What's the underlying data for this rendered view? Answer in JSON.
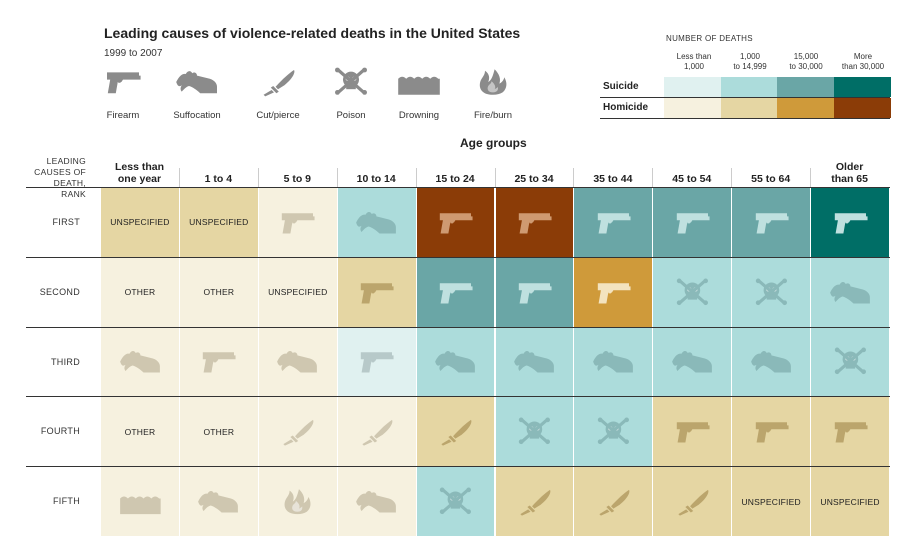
{
  "title": "Leading causes of violence-related deaths in the United States",
  "subtitle": "1999 to 2007",
  "icon_key": [
    {
      "icon": "firearm",
      "label": "Firearm"
    },
    {
      "icon": "suffocation",
      "label": "Suffocation"
    },
    {
      "icon": "cutpierce",
      "label": "Cut/pierce"
    },
    {
      "icon": "poison",
      "label": "Poison"
    },
    {
      "icon": "drowning",
      "label": "Drowning"
    },
    {
      "icon": "fire",
      "label": "Fire/burn"
    }
  ],
  "legend": {
    "title": "NUMBER OF DEATHS",
    "bins": [
      {
        "l1": "Less than",
        "l2": "1,000"
      },
      {
        "l1": "1,000",
        "l2": "to 14,999"
      },
      {
        "l1": "15,000",
        "l2": "to 30,000"
      },
      {
        "l1": "More",
        "l2": "than 30,000"
      }
    ],
    "rows": [
      {
        "label": "Suicide",
        "colors": [
          "#e0f1f0",
          "#acdcdb",
          "#6aa6a6",
          "#006e66"
        ]
      },
      {
        "label": "Homicide",
        "colors": [
          "#f6f1df",
          "#e5d6a3",
          "#cf9a3a",
          "#8b3c07"
        ]
      }
    ]
  },
  "chart_data": {
    "type": "table",
    "title": "Leading causes of violence-related deaths in the United States",
    "subtitle": "1999 to 2007",
    "column_group_label": "Age groups",
    "rank_header": [
      "LEADING",
      "CAUSES OF",
      "DEATH,",
      "RANK"
    ],
    "columns": [
      {
        "l1": "Less than",
        "l2": "one year"
      },
      {
        "l1": "",
        "l2": "1 to 4"
      },
      {
        "l1": "",
        "l2": "5 to 9"
      },
      {
        "l1": "",
        "l2": "10 to 14"
      },
      {
        "l1": "",
        "l2": "15 to 24"
      },
      {
        "l1": "",
        "l2": "25 to 34"
      },
      {
        "l1": "",
        "l2": "35 to 44"
      },
      {
        "l1": "",
        "l2": "45 to 54"
      },
      {
        "l1": "",
        "l2": "55 to 64"
      },
      {
        "l1": "Older",
        "l2": "than 65"
      }
    ],
    "rows": [
      {
        "rank": "FIRST",
        "cells": [
          {
            "type": "homicide",
            "bin": 1,
            "cause": "unspecified",
            "text": "UNSPECIFIED"
          },
          {
            "type": "homicide",
            "bin": 1,
            "cause": "unspecified",
            "text": "UNSPECIFIED"
          },
          {
            "type": "homicide",
            "bin": 0,
            "cause": "firearm"
          },
          {
            "type": "suicide",
            "bin": 1,
            "cause": "suffocation"
          },
          {
            "type": "homicide",
            "bin": 3,
            "cause": "firearm"
          },
          {
            "type": "homicide",
            "bin": 3,
            "cause": "firearm"
          },
          {
            "type": "suicide",
            "bin": 2,
            "cause": "firearm"
          },
          {
            "type": "suicide",
            "bin": 2,
            "cause": "firearm"
          },
          {
            "type": "suicide",
            "bin": 2,
            "cause": "firearm"
          },
          {
            "type": "suicide",
            "bin": 3,
            "cause": "firearm"
          }
        ]
      },
      {
        "rank": "SECOND",
        "cells": [
          {
            "type": "homicide",
            "bin": 0,
            "cause": "other",
            "text": "OTHER"
          },
          {
            "type": "homicide",
            "bin": 0,
            "cause": "other",
            "text": "OTHER"
          },
          {
            "type": "homicide",
            "bin": 0,
            "cause": "unspecified",
            "text": "UNSPECIFIED"
          },
          {
            "type": "homicide",
            "bin": 1,
            "cause": "firearm"
          },
          {
            "type": "suicide",
            "bin": 2,
            "cause": "firearm"
          },
          {
            "type": "suicide",
            "bin": 2,
            "cause": "firearm"
          },
          {
            "type": "homicide",
            "bin": 2,
            "cause": "firearm"
          },
          {
            "type": "suicide",
            "bin": 1,
            "cause": "poison"
          },
          {
            "type": "suicide",
            "bin": 1,
            "cause": "poison"
          },
          {
            "type": "suicide",
            "bin": 1,
            "cause": "suffocation"
          }
        ]
      },
      {
        "rank": "THIRD",
        "cells": [
          {
            "type": "homicide",
            "bin": 0,
            "cause": "suffocation"
          },
          {
            "type": "homicide",
            "bin": 0,
            "cause": "firearm"
          },
          {
            "type": "homicide",
            "bin": 0,
            "cause": "suffocation"
          },
          {
            "type": "suicide",
            "bin": 0,
            "cause": "firearm"
          },
          {
            "type": "suicide",
            "bin": 1,
            "cause": "suffocation"
          },
          {
            "type": "suicide",
            "bin": 1,
            "cause": "suffocation"
          },
          {
            "type": "suicide",
            "bin": 1,
            "cause": "suffocation"
          },
          {
            "type": "suicide",
            "bin": 1,
            "cause": "suffocation"
          },
          {
            "type": "suicide",
            "bin": 1,
            "cause": "suffocation"
          },
          {
            "type": "suicide",
            "bin": 1,
            "cause": "poison"
          }
        ]
      },
      {
        "rank": "FOURTH",
        "cells": [
          {
            "type": "homicide",
            "bin": 0,
            "cause": "other",
            "text": "OTHER"
          },
          {
            "type": "homicide",
            "bin": 0,
            "cause": "other",
            "text": "OTHER"
          },
          {
            "type": "homicide",
            "bin": 0,
            "cause": "cutpierce"
          },
          {
            "type": "homicide",
            "bin": 0,
            "cause": "cutpierce"
          },
          {
            "type": "homicide",
            "bin": 1,
            "cause": "cutpierce"
          },
          {
            "type": "suicide",
            "bin": 1,
            "cause": "poison"
          },
          {
            "type": "suicide",
            "bin": 1,
            "cause": "poison"
          },
          {
            "type": "homicide",
            "bin": 1,
            "cause": "firearm"
          },
          {
            "type": "homicide",
            "bin": 1,
            "cause": "firearm"
          },
          {
            "type": "homicide",
            "bin": 1,
            "cause": "firearm"
          }
        ]
      },
      {
        "rank": "FIFTH",
        "cells": [
          {
            "type": "homicide",
            "bin": 0,
            "cause": "drowning"
          },
          {
            "type": "homicide",
            "bin": 0,
            "cause": "suffocation"
          },
          {
            "type": "homicide",
            "bin": 0,
            "cause": "fire"
          },
          {
            "type": "homicide",
            "bin": 0,
            "cause": "suffocation"
          },
          {
            "type": "suicide",
            "bin": 1,
            "cause": "poison"
          },
          {
            "type": "homicide",
            "bin": 1,
            "cause": "cutpierce"
          },
          {
            "type": "homicide",
            "bin": 1,
            "cause": "cutpierce"
          },
          {
            "type": "homicide",
            "bin": 1,
            "cause": "cutpierce"
          },
          {
            "type": "homicide",
            "bin": 1,
            "cause": "unspecified",
            "text": "UNSPECIFIED"
          },
          {
            "type": "homicide",
            "bin": 1,
            "cause": "unspecified",
            "text": "UNSPECIFIED"
          }
        ]
      }
    ]
  }
}
